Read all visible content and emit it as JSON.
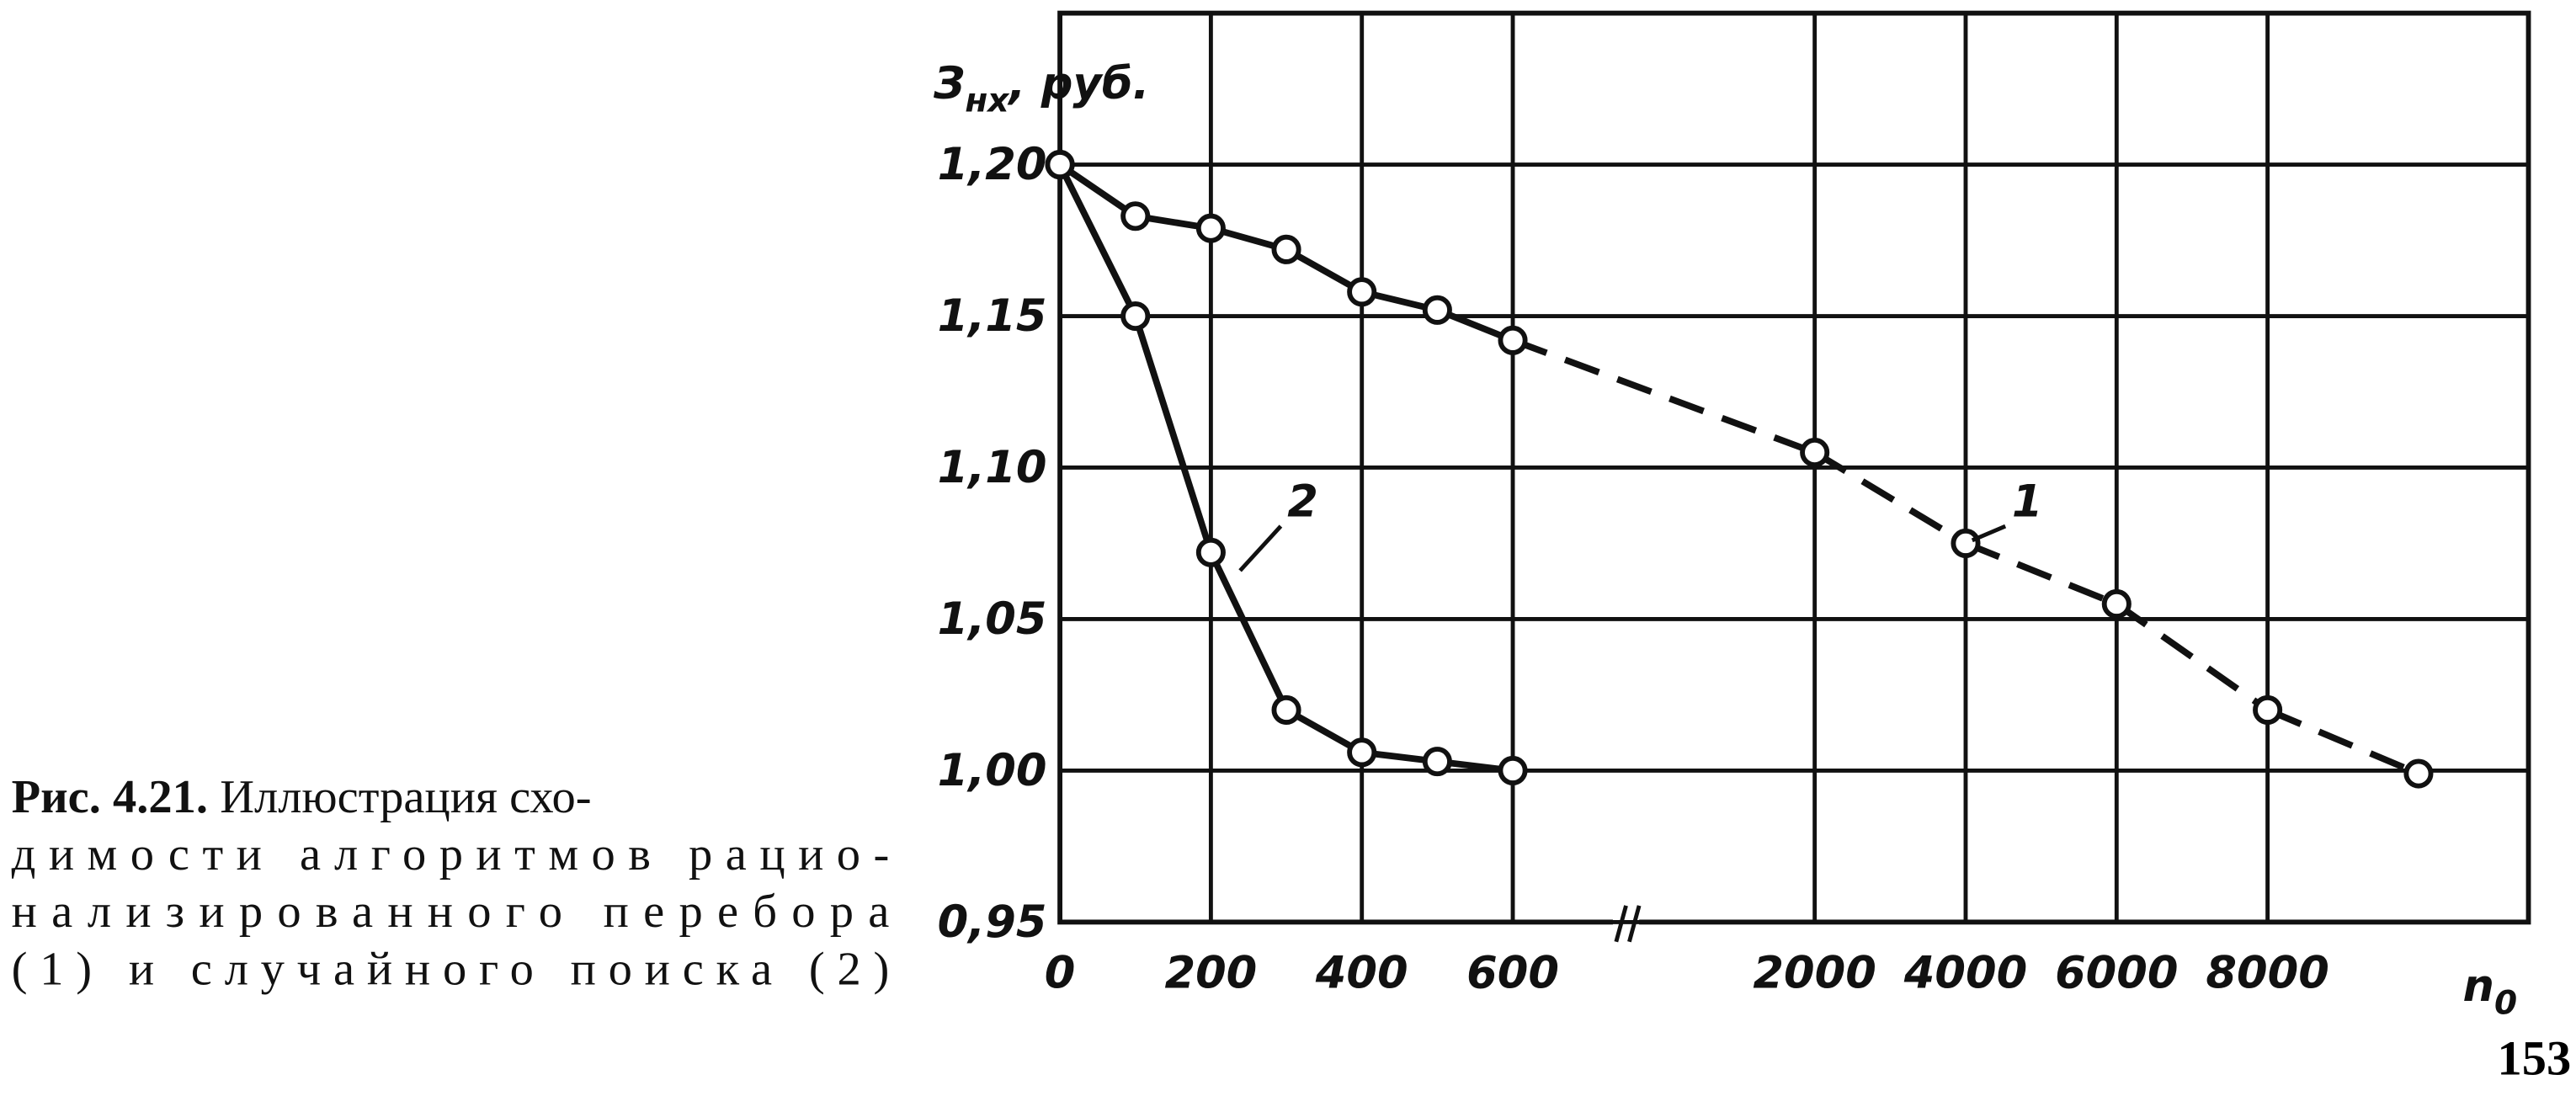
{
  "chart_data": {
    "type": "line",
    "ylabel": {
      "main": "З",
      "sub": "нх",
      "unit": ", руб."
    },
    "xlabel": {
      "main": "n",
      "sub": "0"
    },
    "categories": [
      "0",
      null,
      "200",
      null,
      "400",
      null,
      "600",
      null,
      null,
      null,
      "2000",
      null,
      "4000",
      null,
      "6000",
      null,
      "8000",
      null,
      null
    ],
    "series": [
      {
        "name": "1",
        "color": "#111111",
        "values": [
          1.2,
          1.183,
          1.179,
          1.172,
          1.158,
          1.152,
          1.142,
          null,
          null,
          null,
          1.105,
          null,
          1.075,
          null,
          1.055,
          null,
          1.02,
          null,
          0.999
        ]
      },
      {
        "name": "2",
        "color": "#111111",
        "values": [
          1.2,
          1.15,
          1.072,
          1.02,
          1.006,
          1.003,
          1.0,
          null,
          null,
          null,
          null,
          null,
          null,
          null,
          null,
          null,
          null,
          null,
          null
        ]
      }
    ],
    "gap_style": "dashed",
    "ylim": [
      0.95,
      1.25
    ],
    "yticks": [
      {
        "value": 0.95,
        "label": "0,95"
      },
      {
        "value": 1.0,
        "label": "1,00"
      },
      {
        "value": 1.05,
        "label": "1,05"
      },
      {
        "value": 1.1,
        "label": "1,10"
      },
      {
        "value": 1.15,
        "label": "1,15"
      },
      {
        "value": 1.2,
        "label": "1,20"
      }
    ],
    "grid": true
  },
  "caption": {
    "label": "Рис. 4.21.",
    "lines": [
      "Иллюстрация схо-",
      "димости алгоритмов рацио-",
      "нализированного перебора",
      "(1) и случайного поиска (2)"
    ]
  },
  "page_number": "153"
}
